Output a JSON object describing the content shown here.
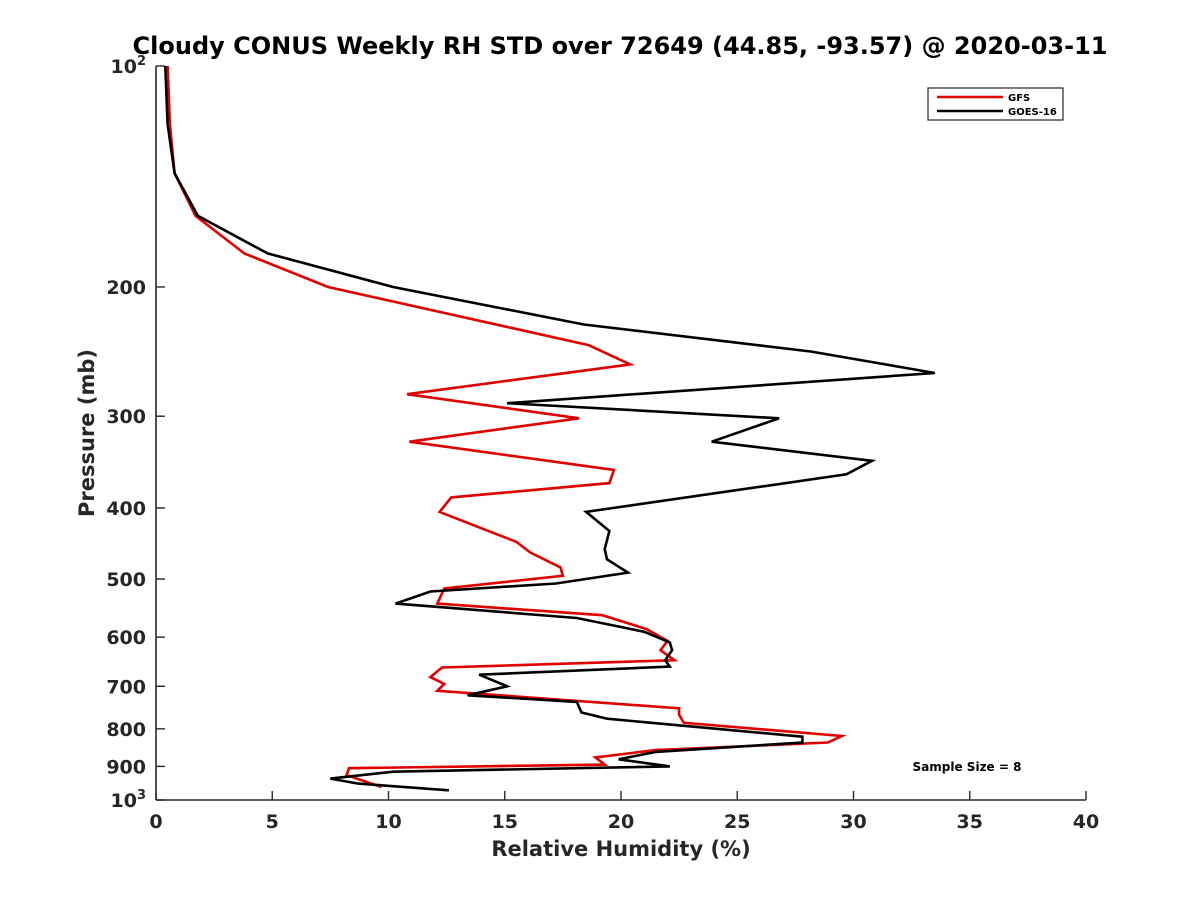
{
  "chart_data": {
    "type": "line",
    "title": "Cloudy CONUS Weekly RH STD over 72649 (44.85, -93.57) @ 2020-03-11",
    "xlabel": "Relative Humidity (%)",
    "ylabel": "Pressure (mb)",
    "xlim": [
      0,
      40
    ],
    "ylim": [
      100,
      1000
    ],
    "y_scale": "log",
    "y_reversed": true,
    "grid": false,
    "legend_position": "top-right",
    "x_ticks": [
      0,
      5,
      10,
      15,
      20,
      25,
      30,
      35,
      40
    ],
    "x_tick_labels": [
      "0",
      "5",
      "10",
      "15",
      "20",
      "25",
      "30",
      "35",
      "40"
    ],
    "y_ticks": [
      100,
      200,
      300,
      400,
      500,
      600,
      700,
      800,
      900,
      1000
    ],
    "y_tick_labels": [
      {
        "base": "10",
        "exp": "2"
      },
      {
        "base": "200",
        "exp": ""
      },
      {
        "base": "300",
        "exp": ""
      },
      {
        "base": "400",
        "exp": ""
      },
      {
        "base": "500",
        "exp": ""
      },
      {
        "base": "600",
        "exp": ""
      },
      {
        "base": "700",
        "exp": ""
      },
      {
        "base": "800",
        "exp": ""
      },
      {
        "base": "900",
        "exp": ""
      },
      {
        "base": "10",
        "exp": "3"
      }
    ],
    "annotation": "Sample Size = 8",
    "series": [
      {
        "name": "GFS",
        "color": "#e00000",
        "x": [
          0.5,
          0.6,
          0.8,
          1.7,
          3.8,
          7.4,
          18.6,
          20.4,
          10.8,
          18.2,
          10.9,
          19.7,
          19.5,
          12.7,
          12.2,
          15.5,
          16.1,
          17.4,
          17.5,
          12.4,
          12.1,
          19.2,
          21.1,
          22.0,
          21.7,
          22.3,
          12.3,
          11.8,
          12.4,
          12.1,
          22.5,
          22.5,
          22.7,
          29.5,
          28.9,
          21.5,
          18.9,
          19.3,
          8.3,
          8.2,
          9.7
        ],
        "y": [
          100,
          120,
          140,
          160,
          180,
          200,
          240,
          255,
          280,
          302,
          325,
          355,
          370,
          387,
          405,
          445,
          460,
          482,
          495,
          515,
          540,
          560,
          585,
          607,
          625,
          645,
          660,
          680,
          695,
          710,
          750,
          765,
          785,
          818,
          835,
          855,
          875,
          895,
          905,
          925,
          960
        ]
      },
      {
        "name": "GOES-16",
        "color": "#000000",
        "x": [
          0.4,
          0.5,
          0.8,
          1.8,
          4.8,
          10.2,
          18.4,
          28.2,
          33.5,
          15.1,
          26.8,
          23.9,
          30.8,
          29.7,
          18.5,
          19.5,
          19.3,
          19.4,
          20.3,
          17.2,
          11.8,
          10.3,
          18.1,
          21.0,
          22.1,
          22.2,
          21.9,
          22.1,
          13.9,
          15.1,
          13.4,
          18.1,
          18.3,
          19.4,
          27.8,
          27.8,
          21.5,
          19.9,
          22.1,
          10.2,
          7.5,
          8.7,
          12.6
        ],
        "y": [
          100,
          120,
          140,
          160,
          180,
          200,
          225,
          245,
          262,
          288,
          302,
          325,
          345,
          360,
          405,
          430,
          455,
          470,
          490,
          507,
          520,
          540,
          565,
          590,
          610,
          625,
          645,
          658,
          675,
          700,
          720,
          735,
          760,
          775,
          820,
          835,
          860,
          880,
          900,
          915,
          935,
          950,
          970
        ]
      }
    ]
  }
}
